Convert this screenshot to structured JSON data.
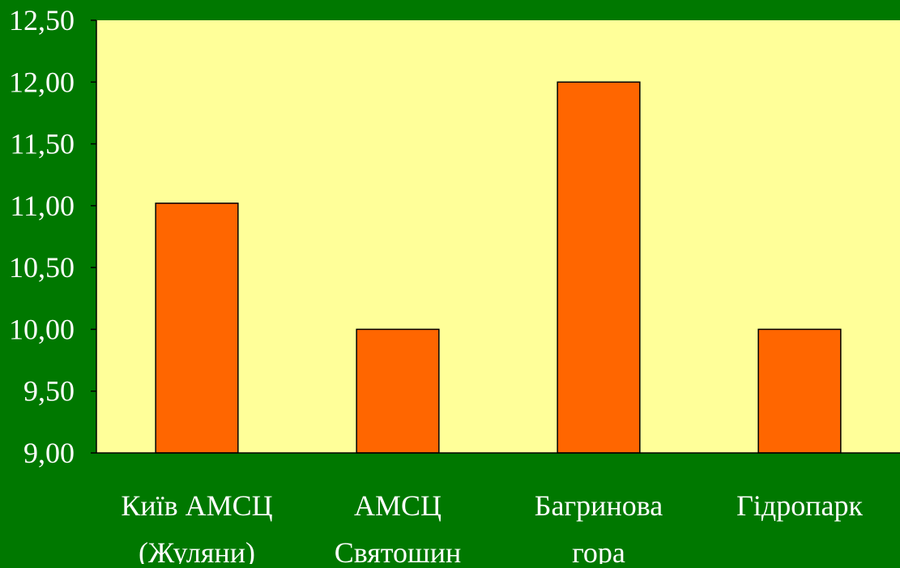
{
  "colors": {
    "background": "#007800",
    "plot_area": "#ffff99",
    "bar_fill": "#ff6600",
    "bar_stroke": "#000000",
    "text": "#ffffff"
  },
  "chart_data": {
    "type": "bar",
    "title": "",
    "xlabel": "",
    "ylabel": "",
    "categories": [
      [
        "Київ АМСЦ",
        "(Жуляни)"
      ],
      [
        "АМСЦ",
        "Святошин"
      ],
      [
        "Багринова",
        "гора"
      ],
      [
        "Гідропарк"
      ]
    ],
    "values": [
      11.02,
      10.0,
      12.0,
      10.0
    ],
    "ylim": [
      9.0,
      12.5
    ],
    "yticks": [
      9.0,
      9.5,
      10.0,
      10.5,
      11.0,
      11.5,
      12.0,
      12.5
    ],
    "ytick_labels": [
      "9,00",
      "9,50",
      "10,00",
      "10,50",
      "11,00",
      "11,50",
      "12,00",
      "12,50"
    ],
    "grid": false,
    "legend": "none"
  }
}
